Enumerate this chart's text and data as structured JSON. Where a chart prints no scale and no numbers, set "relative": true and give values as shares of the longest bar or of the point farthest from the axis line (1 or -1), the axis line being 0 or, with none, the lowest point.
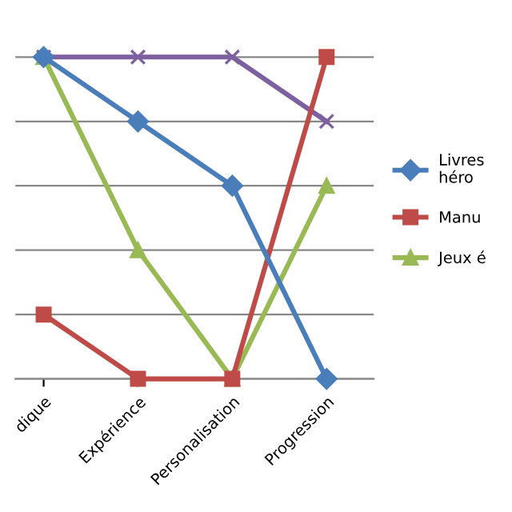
{
  "chart_data": {
    "type": "line",
    "relative": true,
    "grid": "y",
    "legend": "right",
    "categories": [
      "dique",
      "Expérience",
      "Personalisation",
      "Progression"
    ],
    "series": [
      {
        "name": "Livres\nhéro",
        "color": "#4a7ebb",
        "marker": "diamond",
        "values": [
          1,
          0.8,
          0.6,
          0
        ]
      },
      {
        "name": "Manu",
        "color": "#be4b48",
        "marker": "square",
        "values": [
          0.2,
          0,
          0,
          1
        ]
      },
      {
        "name": "Jeux é",
        "color": "#98b954",
        "marker": "triangle",
        "values": [
          1,
          0.4,
          0,
          0.6
        ]
      },
      {
        "color": "#7d60a0",
        "marker": "cross",
        "values": [
          1,
          1,
          1,
          0.8
        ]
      }
    ]
  }
}
